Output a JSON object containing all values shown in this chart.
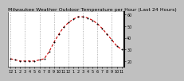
{
  "title": "Milwaukee Weather Outdoor Temperature per Hour (Last 24 Hours)",
  "hours": [
    0,
    1,
    2,
    3,
    4,
    5,
    6,
    7,
    8,
    9,
    10,
    11,
    12,
    13,
    14,
    15,
    16,
    17,
    18,
    19,
    20,
    21,
    22,
    23
  ],
  "temps": [
    22,
    21,
    20,
    20,
    20,
    20,
    21,
    22,
    28,
    36,
    43,
    49,
    53,
    56,
    58,
    58,
    57,
    55,
    52,
    48,
    43,
    38,
    33,
    30
  ],
  "line_color": "#cc0000",
  "marker_color": "#000000",
  "bg_color": "#c0c0c0",
  "plot_bg_color": "#ffffff",
  "grid_color": "#888888",
  "title_color": "#000000",
  "border_color": "#000000",
  "ylim_min": 15,
  "ylim_max": 62,
  "yticks": [
    20,
    30,
    40,
    50,
    60
  ],
  "ytick_labels": [
    "20",
    "30",
    "40",
    "50",
    "60"
  ],
  "xtick_positions": [
    0,
    1,
    2,
    3,
    4,
    5,
    6,
    7,
    8,
    9,
    10,
    11,
    12,
    13,
    14,
    15,
    16,
    17,
    18,
    19,
    20,
    21,
    22,
    23
  ],
  "xtick_labels": [
    "12",
    "1",
    "2",
    "3",
    "4",
    "5",
    "6",
    "7",
    "8",
    "9",
    "10",
    "11",
    "12",
    "1",
    "2",
    "3",
    "4",
    "5",
    "6",
    "7",
    "8",
    "9",
    "10",
    "11"
  ],
  "grid_x_positions": [
    0,
    3,
    6,
    9,
    12,
    15,
    18,
    21
  ],
  "title_fontsize": 4.5,
  "tick_fontsize": 3.5,
  "line_width": 0.8,
  "marker_size": 2.0,
  "right_border_x": 23
}
